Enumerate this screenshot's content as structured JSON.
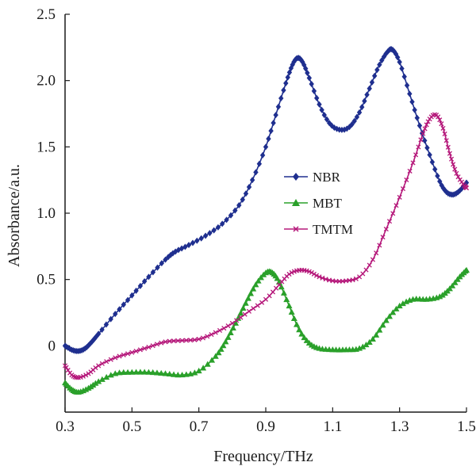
{
  "chart_data": {
    "type": "line",
    "xlabel": "Frequency/THz",
    "ylabel": "Absorbance/a.u.",
    "xlim": [
      0.3,
      1.5
    ],
    "ylim": [
      -0.5,
      2.5
    ],
    "x_ticks": [
      0.3,
      0.5,
      0.7,
      0.9,
      1.1,
      1.3,
      1.5
    ],
    "x_tick_labels": [
      "0.3",
      "0.5",
      "0.7",
      "0.9",
      "1.1",
      "1.3",
      "1.5"
    ],
    "y_ticks": [
      0,
      0.5,
      1.0,
      1.5,
      2.0,
      2.5
    ],
    "y_tick_labels": [
      "0",
      "0.5",
      "1.0",
      "1.5",
      "2.0",
      "2.5"
    ],
    "grid": false,
    "legend_position": "center-right",
    "series": [
      {
        "name": "NBR",
        "color": "#1f2f8f",
        "marker": "diamond",
        "points": [
          [
            0.3,
            0.0
          ],
          [
            0.32,
            -0.03
          ],
          [
            0.34,
            -0.04
          ],
          [
            0.36,
            -0.02
          ],
          [
            0.38,
            0.03
          ],
          [
            0.4,
            0.09
          ],
          [
            0.45,
            0.24
          ],
          [
            0.5,
            0.38
          ],
          [
            0.55,
            0.52
          ],
          [
            0.6,
            0.65
          ],
          [
            0.63,
            0.71
          ],
          [
            0.67,
            0.76
          ],
          [
            0.72,
            0.83
          ],
          [
            0.77,
            0.92
          ],
          [
            0.82,
            1.06
          ],
          [
            0.86,
            1.25
          ],
          [
            0.9,
            1.5
          ],
          [
            0.93,
            1.74
          ],
          [
            0.96,
            1.98
          ],
          [
            0.98,
            2.12
          ],
          [
            0.995,
            2.17
          ],
          [
            1.01,
            2.14
          ],
          [
            1.03,
            2.02
          ],
          [
            1.06,
            1.82
          ],
          [
            1.09,
            1.68
          ],
          [
            1.12,
            1.63
          ],
          [
            1.15,
            1.65
          ],
          [
            1.18,
            1.76
          ],
          [
            1.21,
            1.94
          ],
          [
            1.24,
            2.12
          ],
          [
            1.265,
            2.22
          ],
          [
            1.28,
            2.23
          ],
          [
            1.3,
            2.14
          ],
          [
            1.33,
            1.9
          ],
          [
            1.36,
            1.66
          ],
          [
            1.39,
            1.44
          ],
          [
            1.42,
            1.24
          ],
          [
            1.44,
            1.16
          ],
          [
            1.46,
            1.14
          ],
          [
            1.48,
            1.17
          ],
          [
            1.5,
            1.23
          ]
        ]
      },
      {
        "name": "MBT",
        "color": "#2aa02a",
        "marker": "triangle",
        "points": [
          [
            0.3,
            -0.28
          ],
          [
            0.32,
            -0.33
          ],
          [
            0.34,
            -0.35
          ],
          [
            0.37,
            -0.32
          ],
          [
            0.4,
            -0.27
          ],
          [
            0.45,
            -0.21
          ],
          [
            0.5,
            -0.2
          ],
          [
            0.55,
            -0.2
          ],
          [
            0.6,
            -0.21
          ],
          [
            0.65,
            -0.22
          ],
          [
            0.7,
            -0.19
          ],
          [
            0.75,
            -0.08
          ],
          [
            0.78,
            0.03
          ],
          [
            0.81,
            0.17
          ],
          [
            0.84,
            0.32
          ],
          [
            0.87,
            0.46
          ],
          [
            0.9,
            0.55
          ],
          [
            0.92,
            0.55
          ],
          [
            0.94,
            0.48
          ],
          [
            0.97,
            0.3
          ],
          [
            1.0,
            0.12
          ],
          [
            1.03,
            0.02
          ],
          [
            1.06,
            -0.02
          ],
          [
            1.1,
            -0.03
          ],
          [
            1.14,
            -0.03
          ],
          [
            1.18,
            -0.02
          ],
          [
            1.22,
            0.05
          ],
          [
            1.26,
            0.19
          ],
          [
            1.3,
            0.3
          ],
          [
            1.34,
            0.35
          ],
          [
            1.38,
            0.35
          ],
          [
            1.42,
            0.37
          ],
          [
            1.45,
            0.43
          ],
          [
            1.48,
            0.52
          ],
          [
            1.5,
            0.57
          ]
        ]
      },
      {
        "name": "TMTM",
        "color": "#b5187a",
        "marker": "cross",
        "points": [
          [
            0.3,
            -0.15
          ],
          [
            0.32,
            -0.22
          ],
          [
            0.34,
            -0.24
          ],
          [
            0.37,
            -0.21
          ],
          [
            0.4,
            -0.15
          ],
          [
            0.45,
            -0.09
          ],
          [
            0.5,
            -0.05
          ],
          [
            0.55,
            -0.01
          ],
          [
            0.6,
            0.03
          ],
          [
            0.65,
            0.04
          ],
          [
            0.7,
            0.05
          ],
          [
            0.75,
            0.1
          ],
          [
            0.8,
            0.17
          ],
          [
            0.85,
            0.26
          ],
          [
            0.9,
            0.35
          ],
          [
            0.94,
            0.46
          ],
          [
            0.97,
            0.54
          ],
          [
            1.0,
            0.57
          ],
          [
            1.03,
            0.56
          ],
          [
            1.06,
            0.52
          ],
          [
            1.1,
            0.49
          ],
          [
            1.14,
            0.49
          ],
          [
            1.18,
            0.52
          ],
          [
            1.22,
            0.65
          ],
          [
            1.26,
            0.88
          ],
          [
            1.3,
            1.12
          ],
          [
            1.34,
            1.38
          ],
          [
            1.37,
            1.6
          ],
          [
            1.39,
            1.71
          ],
          [
            1.41,
            1.74
          ],
          [
            1.43,
            1.64
          ],
          [
            1.45,
            1.45
          ],
          [
            1.47,
            1.3
          ],
          [
            1.49,
            1.22
          ],
          [
            1.5,
            1.19
          ]
        ]
      }
    ]
  }
}
